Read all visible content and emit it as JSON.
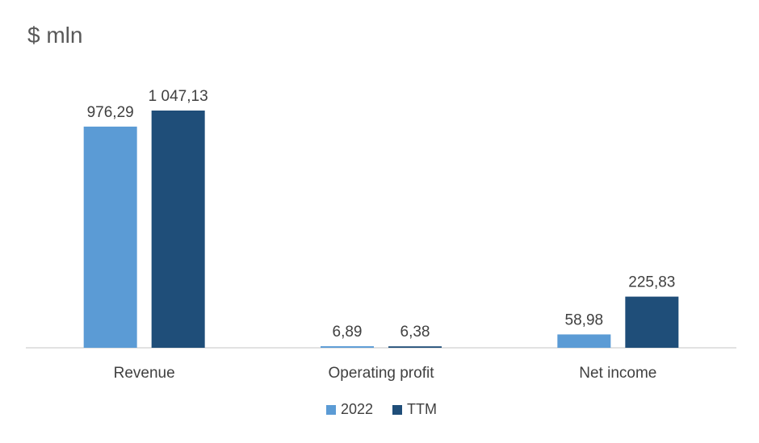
{
  "chart_data": {
    "type": "bar",
    "title": "$ mln",
    "categories": [
      "Revenue",
      "Operating profit",
      "Net income"
    ],
    "series": [
      {
        "name": "2022",
        "color": "#5b9bd5",
        "values": [
          976.29,
          6.89,
          58.98
        ],
        "labels": [
          "976,29",
          "6,89",
          "58,98"
        ]
      },
      {
        "name": "TTM",
        "color": "#1f4e79",
        "values": [
          1047.13,
          6.38,
          225.83
        ],
        "labels": [
          "1 047,13",
          "6,38",
          "225,83"
        ]
      }
    ],
    "ylim": [
      0,
      1047.13
    ],
    "grid": false,
    "legend": "bottom"
  }
}
